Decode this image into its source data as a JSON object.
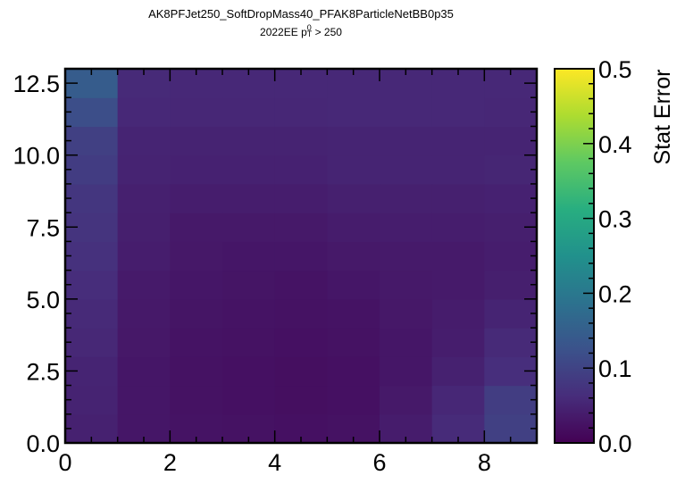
{
  "chart_data": {
    "type": "heatmap",
    "title": "AK8PFJet250_SoftDropMass40_PFAK8ParticleNetBB0p35",
    "subtitle_prefix": "2022EE p",
    "subtitle_sup": "0",
    "subtitle_sub": "T",
    "subtitle_suffix": " > 250",
    "xlabel": "",
    "ylabel": "",
    "xlim": [
      0,
      9
    ],
    "ylim": [
      0,
      13
    ],
    "x_edges": [
      0,
      1,
      2,
      3,
      4,
      5,
      6,
      7,
      8,
      9
    ],
    "y_edges": [
      0,
      1,
      2,
      3,
      4,
      5,
      6,
      7,
      8,
      9,
      10,
      11,
      12,
      13
    ],
    "x_ticks": [
      "0",
      "2",
      "4",
      "6",
      "8"
    ],
    "y_ticks": [
      "0.0",
      "2.5",
      "5.0",
      "7.5",
      "10.0",
      "12.5"
    ],
    "values": [
      [
        0.045,
        0.03,
        0.026,
        0.024,
        0.022,
        0.024,
        0.038,
        0.06,
        0.095
      ],
      [
        0.048,
        0.03,
        0.024,
        0.022,
        0.02,
        0.022,
        0.034,
        0.054,
        0.09
      ],
      [
        0.05,
        0.03,
        0.024,
        0.022,
        0.02,
        0.022,
        0.03,
        0.045,
        0.065
      ],
      [
        0.055,
        0.032,
        0.026,
        0.024,
        0.022,
        0.024,
        0.03,
        0.04,
        0.058
      ],
      [
        0.058,
        0.034,
        0.028,
        0.026,
        0.024,
        0.026,
        0.032,
        0.038,
        0.05
      ],
      [
        0.062,
        0.036,
        0.03,
        0.028,
        0.026,
        0.03,
        0.034,
        0.036,
        0.042
      ],
      [
        0.07,
        0.04,
        0.032,
        0.03,
        0.03,
        0.034,
        0.036,
        0.036,
        0.04
      ],
      [
        0.074,
        0.042,
        0.034,
        0.034,
        0.034,
        0.038,
        0.04,
        0.04,
        0.042
      ],
      [
        0.078,
        0.044,
        0.04,
        0.04,
        0.04,
        0.044,
        0.044,
        0.044,
        0.046
      ],
      [
        0.088,
        0.048,
        0.046,
        0.046,
        0.046,
        0.05,
        0.05,
        0.05,
        0.052
      ],
      [
        0.094,
        0.05,
        0.048,
        0.048,
        0.048,
        0.05,
        0.05,
        0.05,
        0.05
      ],
      [
        0.118,
        0.056,
        0.054,
        0.054,
        0.054,
        0.056,
        0.056,
        0.056,
        0.054
      ],
      [
        0.145,
        0.058,
        0.056,
        0.056,
        0.056,
        0.056,
        0.056,
        0.056,
        0.056
      ],
      [
        0.105,
        0.046,
        0.044,
        0.044,
        0.044,
        0.044,
        0.044,
        0.044,
        0.044
      ]
    ],
    "values_row_order": "bottom-to-top (row 0 = y bin [0,1])",
    "colormap": "viridis",
    "colorbar": {
      "label": "Stat Error",
      "range": [
        0.0,
        0.5
      ],
      "ticks": [
        "0.0",
        "0.1",
        "0.2",
        "0.3",
        "0.4",
        "0.5"
      ]
    },
    "grid": false,
    "legend": "none"
  }
}
